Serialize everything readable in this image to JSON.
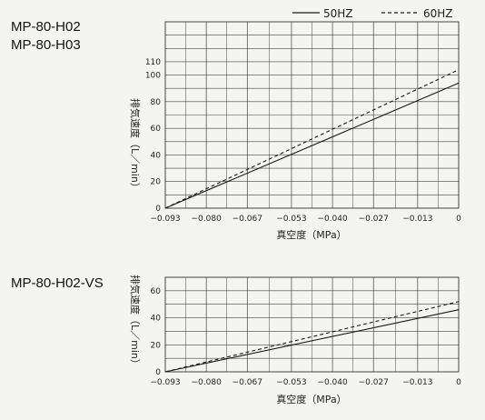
{
  "legend": {
    "items": [
      {
        "label": "50HZ",
        "style": "solid"
      },
      {
        "label": "60HZ",
        "style": "dashed"
      }
    ]
  },
  "line_color": "#1a1a1a",
  "grid_color": "#444444",
  "chart_data": [
    {
      "type": "line",
      "models": [
        "MP-80-H02",
        "MP-80-H03"
      ],
      "xlabel": "真空度（MPa）",
      "ylabel": "排気速度（L／min）",
      "x_ticks": [
        -0.093,
        -0.08,
        -0.067,
        -0.053,
        -0.04,
        -0.027,
        -0.013,
        0
      ],
      "x_tick_labels": [
        "−0.093",
        "−0.080",
        "−0.067",
        "−0.053",
        "−0.040",
        "−0.027",
        "−0.013",
        "0"
      ],
      "y_ticks": [
        0,
        20,
        40,
        60,
        80,
        100,
        110
      ],
      "y_tick_labels": [
        "0",
        "20",
        "40",
        "60",
        "80",
        "100",
        "110"
      ],
      "xlim": [
        -0.093,
        0
      ],
      "ylim": [
        0,
        140
      ],
      "grid": true,
      "series": [
        {
          "name": "50HZ",
          "style": "solid",
          "x": [
            -0.093,
            0
          ],
          "y": [
            0,
            94
          ]
        },
        {
          "name": "60HZ",
          "style": "dashed",
          "x": [
            -0.093,
            0
          ],
          "y": [
            0,
            104
          ]
        }
      ]
    },
    {
      "type": "line",
      "models": [
        "MP-80-H02-VS"
      ],
      "xlabel": "真空度（MPa）",
      "ylabel": "排気速度（L／min）",
      "x_ticks": [
        -0.093,
        -0.08,
        -0.067,
        -0.053,
        -0.04,
        -0.027,
        -0.013,
        0
      ],
      "x_tick_labels": [
        "−0.093",
        "−0.080",
        "−0.067",
        "−0.053",
        "−0.040",
        "−0.027",
        "−0.013",
        "0"
      ],
      "y_ticks": [
        0,
        20,
        40,
        60
      ],
      "y_tick_labels": [
        "0",
        "20",
        "40",
        "60"
      ],
      "xlim": [
        -0.093,
        0
      ],
      "ylim": [
        0,
        70
      ],
      "grid": true,
      "series": [
        {
          "name": "50HZ",
          "style": "solid",
          "x": [
            -0.093,
            0
          ],
          "y": [
            0,
            46
          ]
        },
        {
          "name": "60HZ",
          "style": "dashed",
          "x": [
            -0.093,
            0
          ],
          "y": [
            0,
            52
          ]
        }
      ]
    }
  ]
}
